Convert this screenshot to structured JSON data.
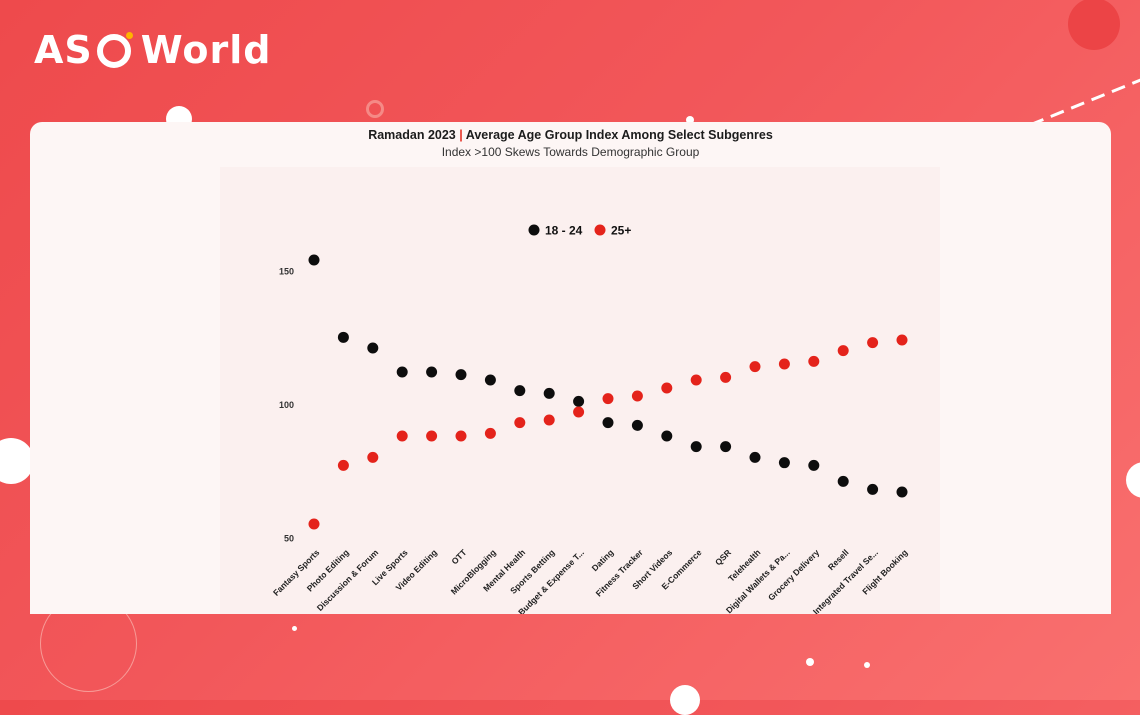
{
  "brand": {
    "logo_text_left": "AS",
    "logo_text_right": "World"
  },
  "colors": {
    "page_background": "#f2575a",
    "series_18_24": "#0d0d0d",
    "series_25_plus": "#e4231b",
    "accent_dot": "#ffb400"
  },
  "chart_data": {
    "type": "scatter",
    "title_main": "Ramadan 2023",
    "title_separator": "|",
    "title_rest": "Average Age Group Index Among Select Subgenres",
    "subtitle": "Index  >100 Skews Towards Demographic Group",
    "legend_placement": "top-center",
    "ylim": [
      50,
      155
    ],
    "yticks": [
      "150",
      "100",
      "50"
    ],
    "grid": false,
    "categories": [
      "Fantasy Sports",
      "Photo Editing",
      "Discussion & Forum",
      "Live Sports",
      "Video Editing",
      "OTT",
      "MicroBlogging",
      "Mental Health",
      "Sports Betting",
      "Budget & Expense T...",
      "Dating",
      "Fitness Tracker",
      "Short Videos",
      "E-Commerce",
      "QSR",
      "Telehealth",
      "Digital Wallets & Pa...",
      "Grocery Delivery",
      "Resell",
      "Integrated Travel Se...",
      "Flight Booking"
    ],
    "series": [
      {
        "name": "18 - 24",
        "values": [
          154,
          125,
          121,
          112,
          112,
          111,
          109,
          105,
          104,
          101,
          93,
          92,
          88,
          84,
          84,
          80,
          78,
          77,
          71,
          68,
          67
        ]
      },
      {
        "name": "25+",
        "values": [
          55,
          77,
          80,
          88,
          88,
          88,
          89,
          93,
          94,
          97,
          102,
          103,
          106,
          109,
          110,
          114,
          115,
          116,
          120,
          123,
          124
        ]
      }
    ]
  }
}
